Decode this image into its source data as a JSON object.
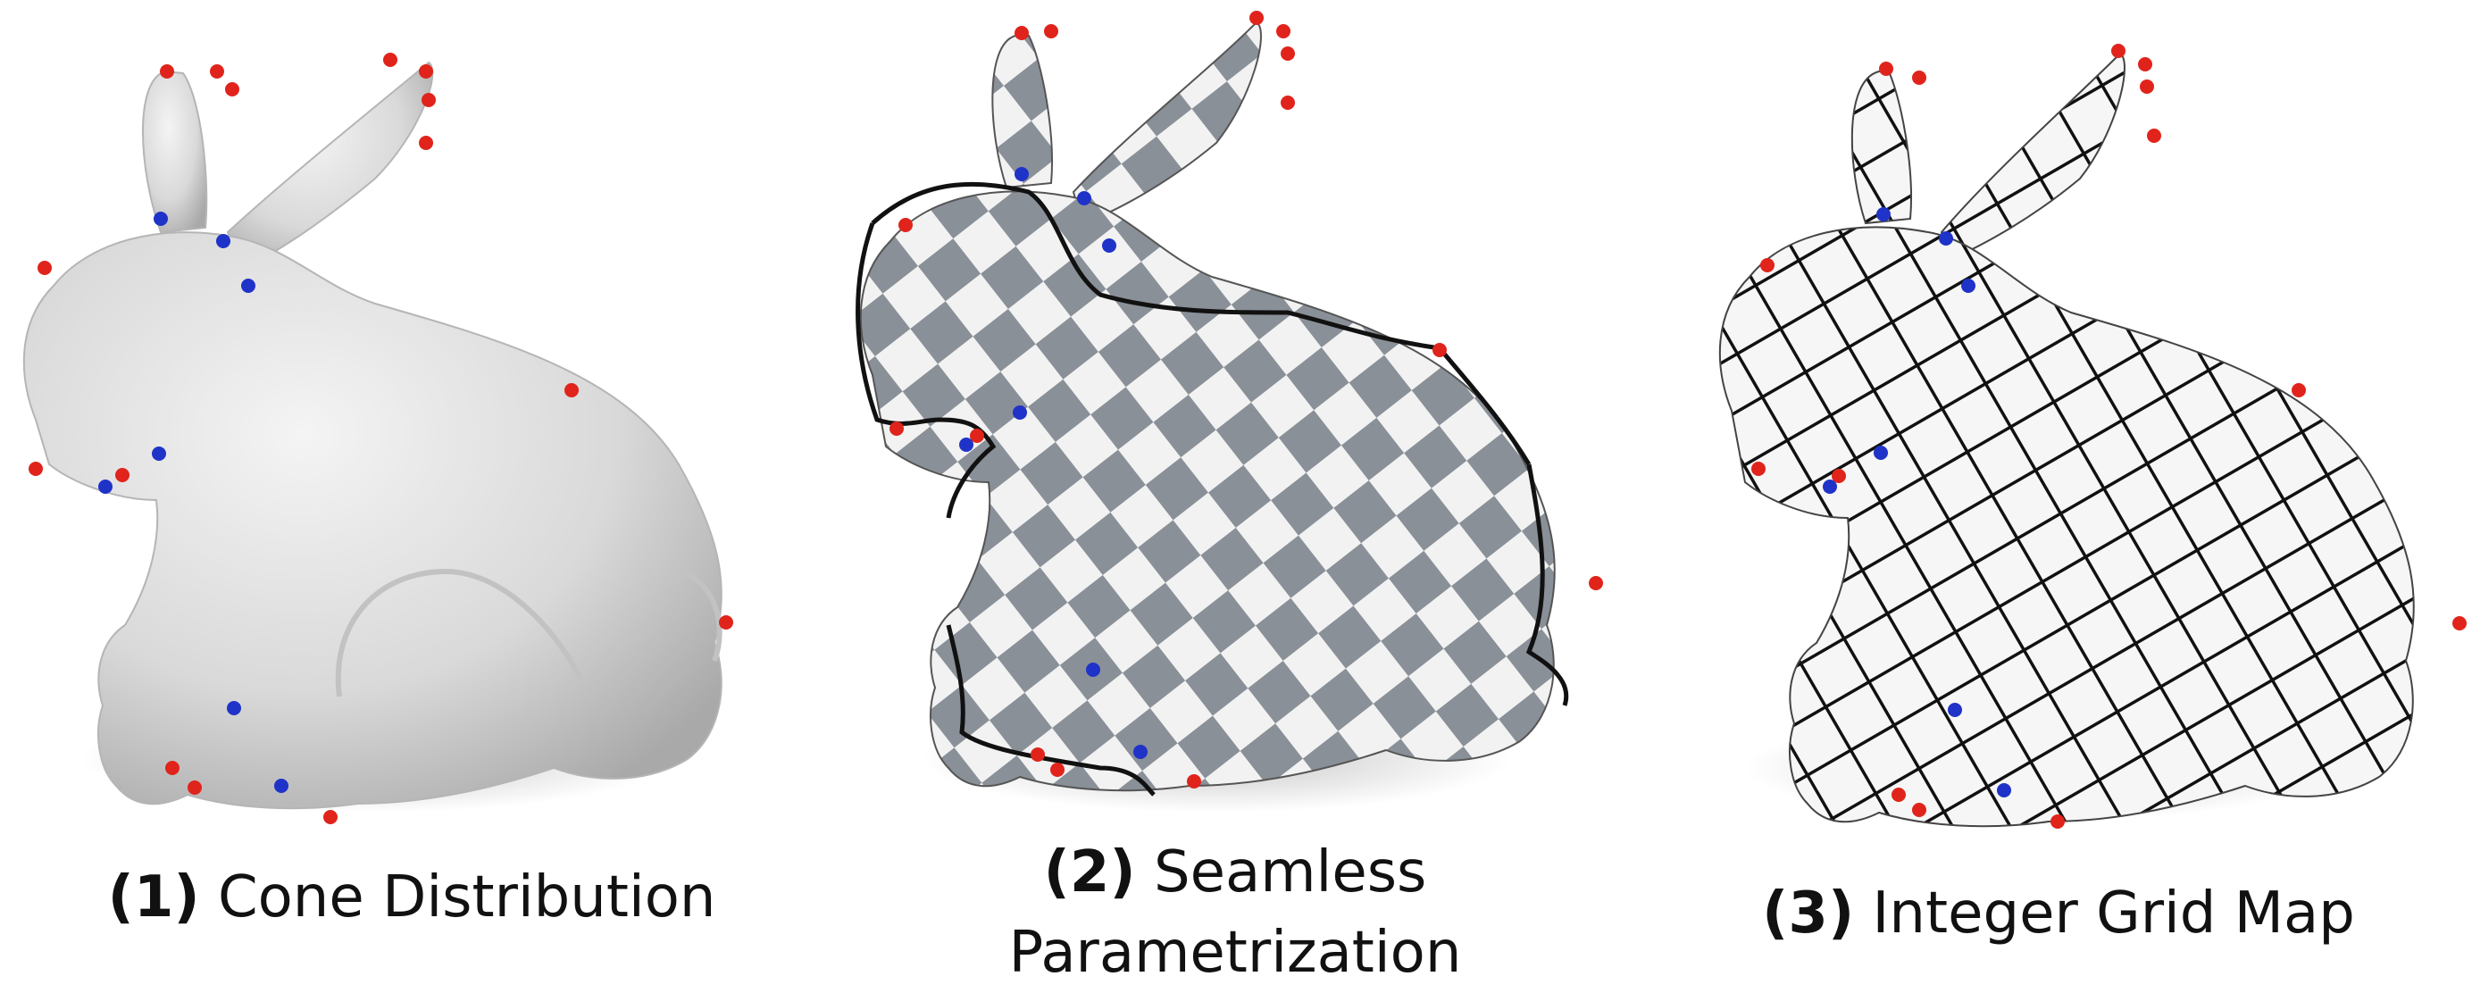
{
  "panels": [
    {
      "number": "(1)",
      "label": "Cone Distribution",
      "label2": ""
    },
    {
      "number": "(2)",
      "label": "Seamless",
      "label2": "Parametrization"
    },
    {
      "number": "(3)",
      "label": "Integer Grid Map",
      "label2": ""
    }
  ],
  "colors": {
    "mesh": "#d8d8d8",
    "checker_dark": "#8a9098",
    "checker_light": "#f2f2f2",
    "grid_line": "#111111",
    "seam": "#111111",
    "cone_positive": "#e0241b",
    "cone_negative": "#1f33c8"
  }
}
